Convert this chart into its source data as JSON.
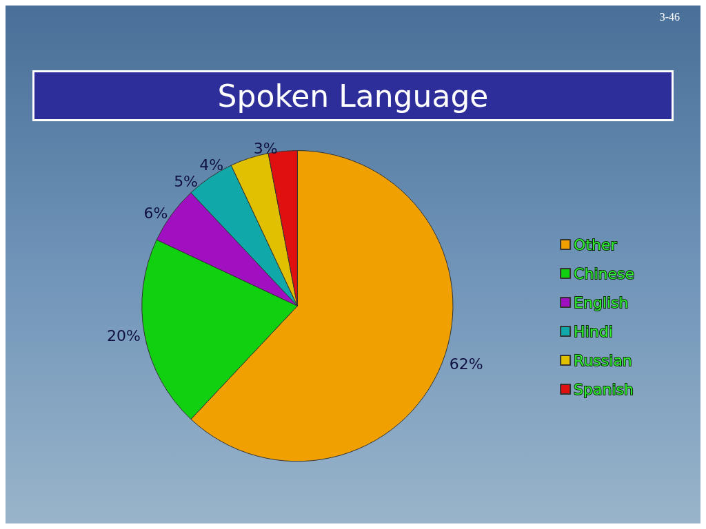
{
  "chart_data": {
    "type": "pie",
    "title": "Spoken Language",
    "categories": [
      "Other",
      "Chinese",
      "English",
      "Hindi",
      "Russian",
      "Spanish"
    ],
    "values": [
      62,
      20,
      6,
      5,
      4,
      3
    ],
    "colors": [
      "#f0a000",
      "#10d010",
      "#a010c0",
      "#10a8a8",
      "#e0c000",
      "#e01010"
    ],
    "value_labels": [
      "62%",
      "20%",
      "6%",
      "5%",
      "4%",
      "3%"
    ],
    "legend": "right",
    "annotations": [
      "3-46"
    ]
  }
}
